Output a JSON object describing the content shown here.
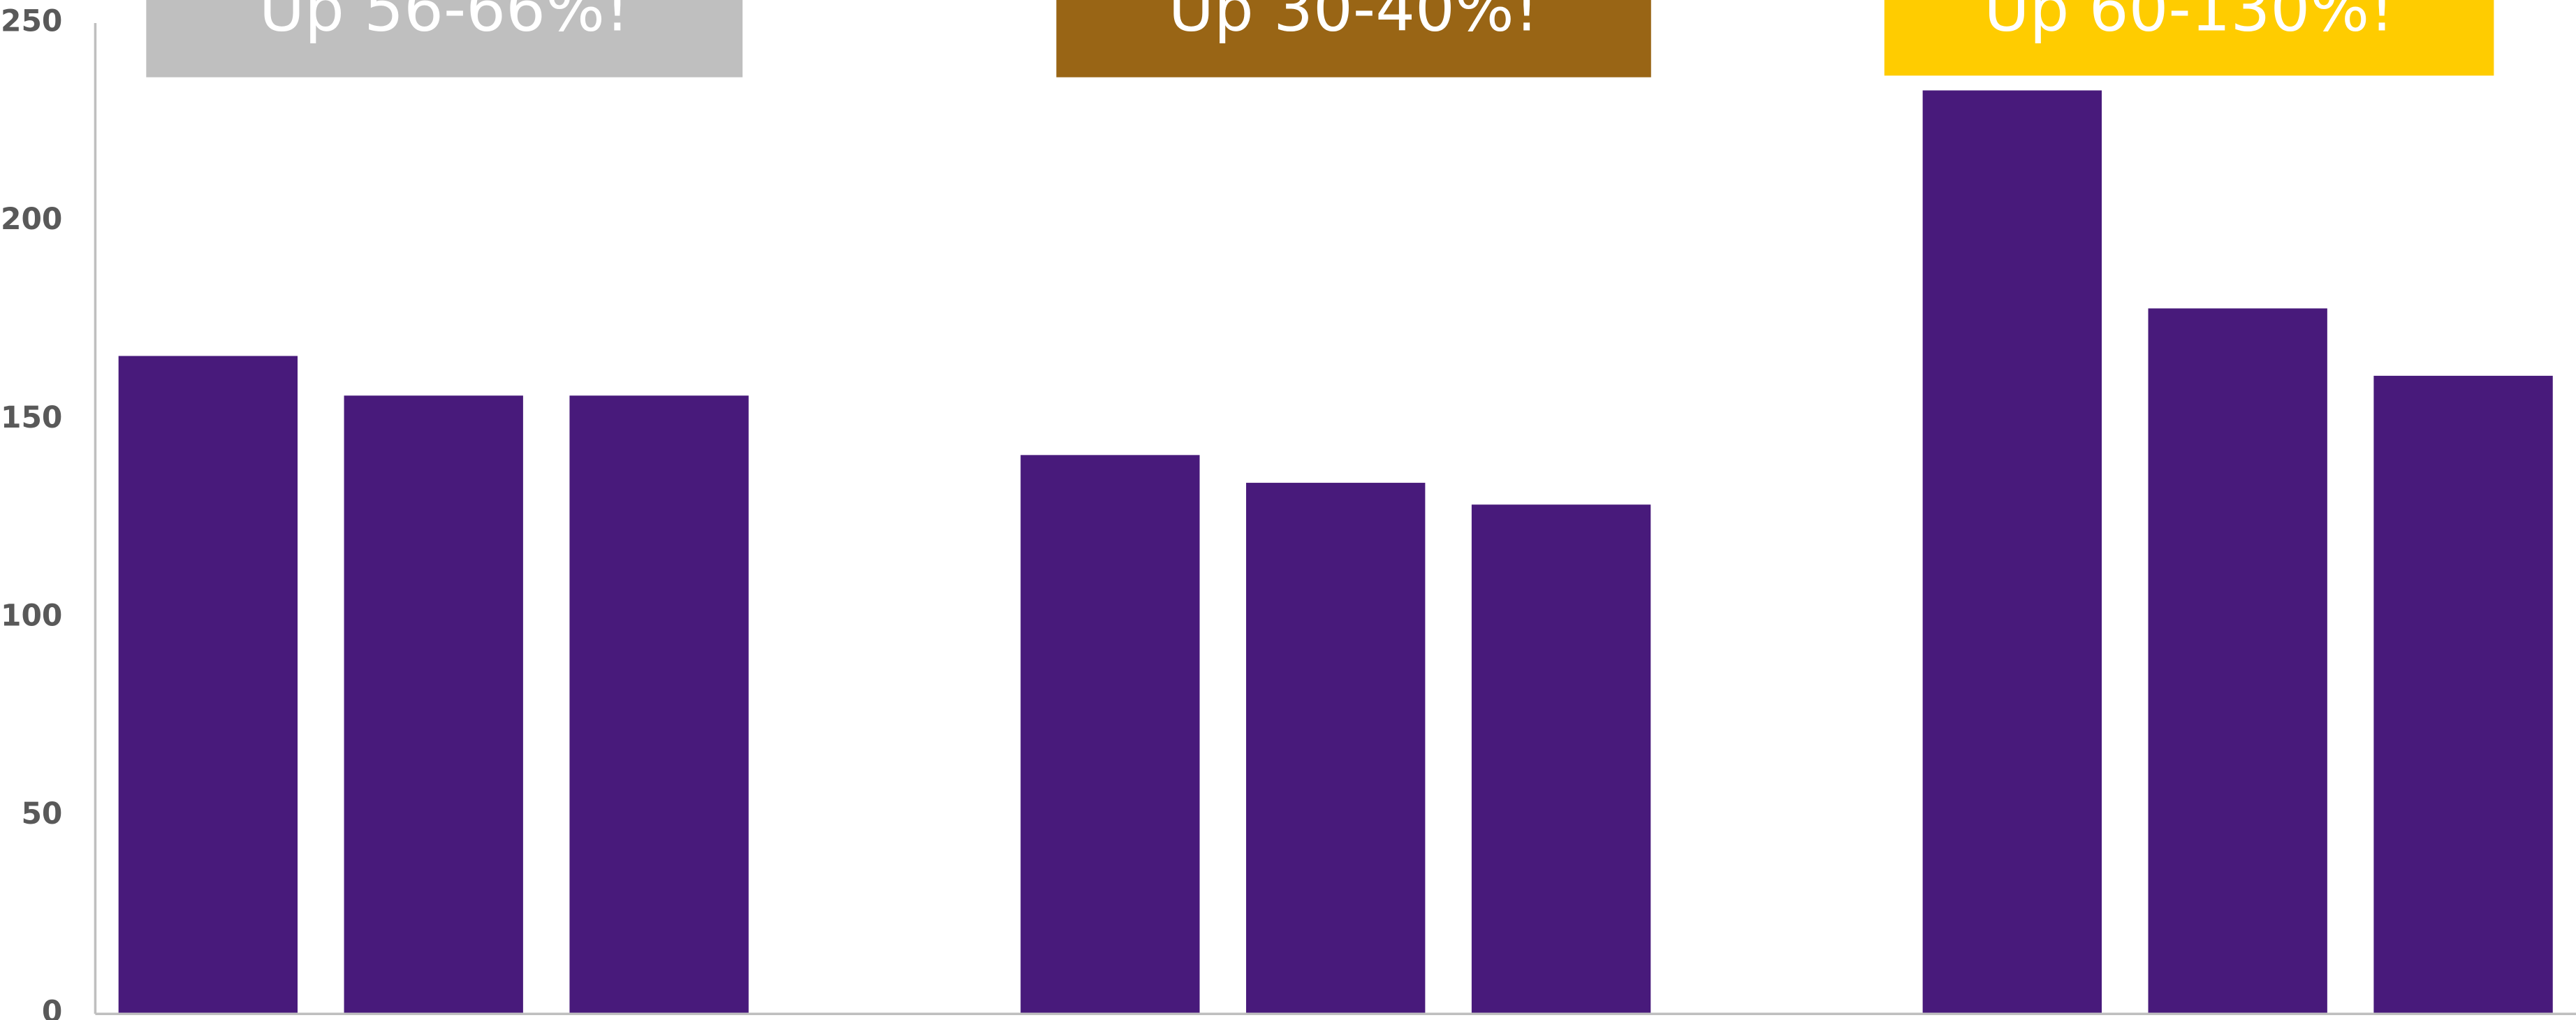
{
  "chart_data": {
    "type": "bar",
    "categories": [
      null,
      null,
      null,
      null,
      null,
      null,
      null,
      null,
      null,
      null,
      null
    ],
    "values": [
      166,
      156,
      156,
      null,
      141,
      134,
      128.5,
      null,
      233,
      178,
      161
    ],
    "color": "#481a7b",
    "ylim": [
      0,
      250
    ],
    "yticks": [
      0,
      50,
      100,
      150,
      200,
      250
    ],
    "grid": false,
    "annotations": [
      {
        "text": "Up 56-66%!",
        "color": "#bfbfbf"
      },
      {
        "text": "Up 30-40%!",
        "color": "#996515"
      },
      {
        "text": "Up 60-130%!",
        "color": "#ffcc00"
      }
    ]
  }
}
